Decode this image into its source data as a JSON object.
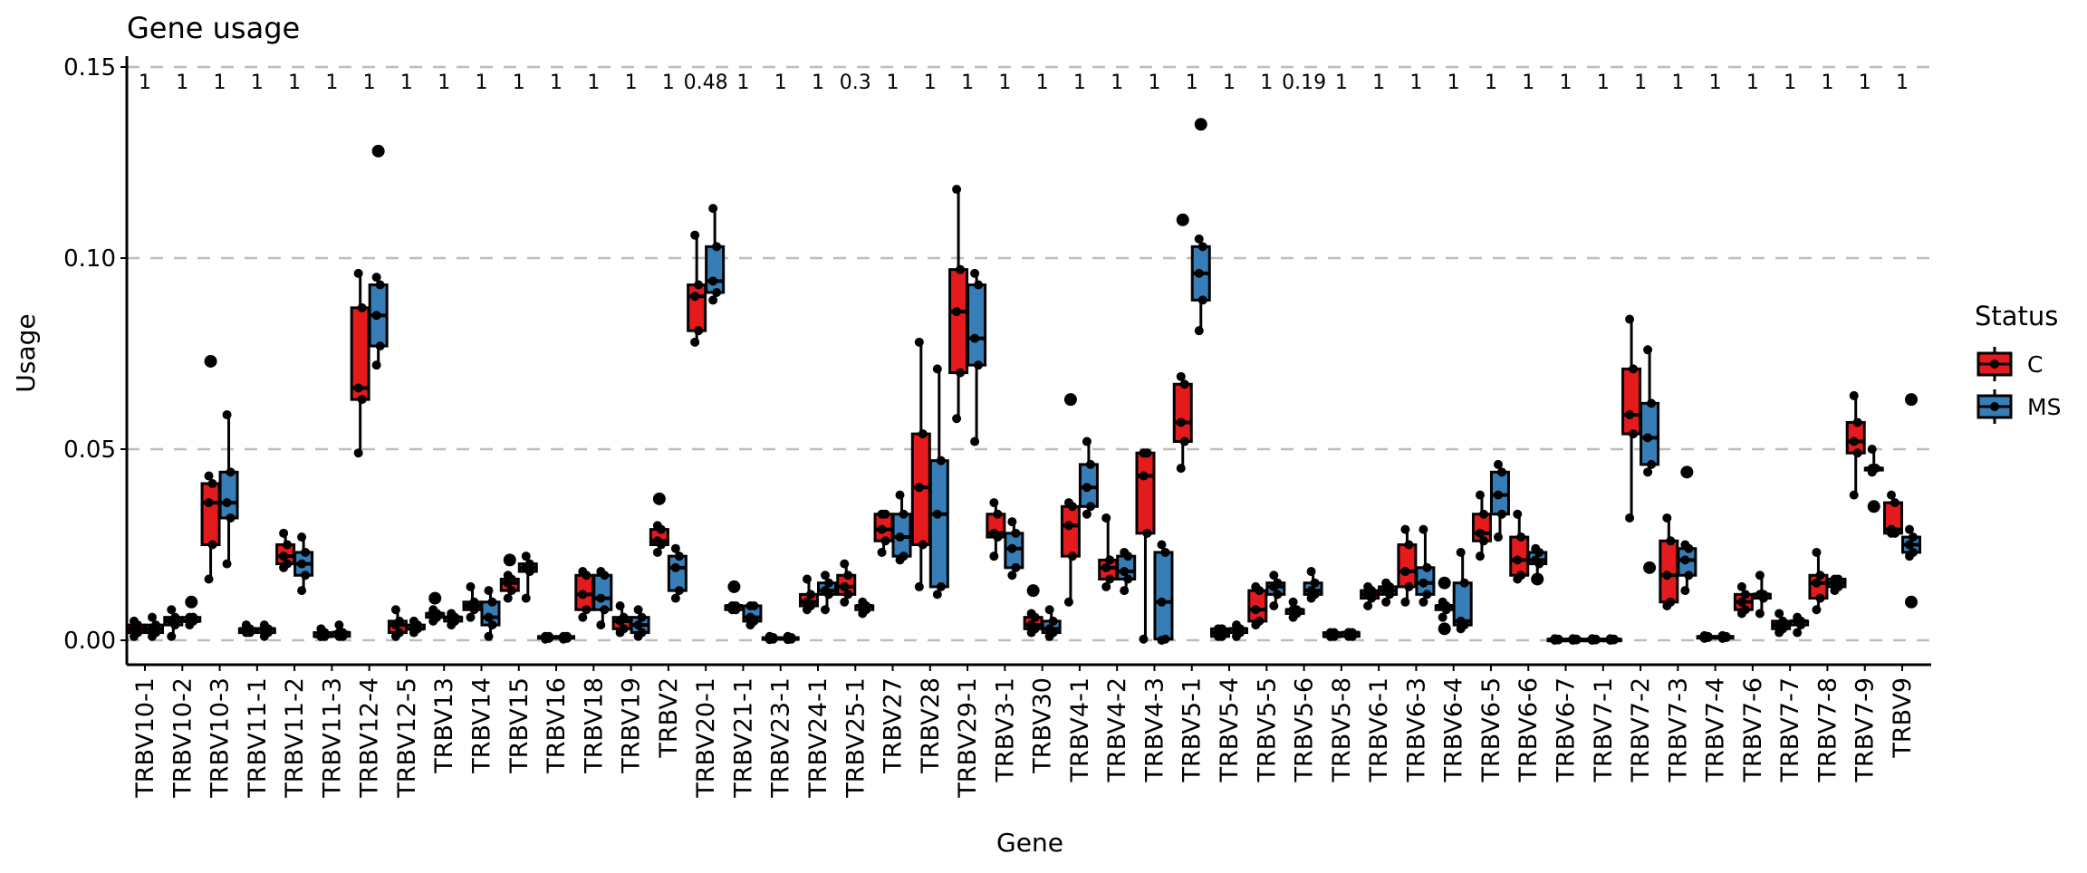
{
  "chart_data": {
    "type": "box",
    "title": "Gene usage",
    "xlabel": "Gene",
    "ylabel": "Usage",
    "ylim": [
      0,
      0.15
    ],
    "yticks": [
      "0.00",
      "0.05",
      "0.10",
      "0.15"
    ],
    "ytick_values": [
      0,
      0.05,
      0.1,
      0.15
    ],
    "grid": "horizontal dashed",
    "legend": {
      "title": "Status",
      "position": "right",
      "entries": [
        "C",
        "MS"
      ]
    },
    "colors": {
      "C": "#E41A1C",
      "MS": "#377EB8"
    },
    "categories": [
      "TRBV10-1",
      "TRBV10-2",
      "TRBV10-3",
      "TRBV11-1",
      "TRBV11-2",
      "TRBV11-3",
      "TRBV12-4",
      "TRBV12-5",
      "TRBV13",
      "TRBV14",
      "TRBV15",
      "TRBV16",
      "TRBV18",
      "TRBV19",
      "TRBV2",
      "TRBV20-1",
      "TRBV21-1",
      "TRBV23-1",
      "TRBV24-1",
      "TRBV25-1",
      "TRBV27",
      "TRBV28",
      "TRBV29-1",
      "TRBV3-1",
      "TRBV30",
      "TRBV4-1",
      "TRBV4-2",
      "TRBV4-3",
      "TRBV5-1",
      "TRBV5-4",
      "TRBV5-5",
      "TRBV5-6",
      "TRBV5-8",
      "TRBV6-1",
      "TRBV6-3",
      "TRBV6-4",
      "TRBV6-5",
      "TRBV6-6",
      "TRBV6-7",
      "TRBV7-1",
      "TRBV7-2",
      "TRBV7-3",
      "TRBV7-4",
      "TRBV7-6",
      "TRBV7-7",
      "TRBV7-8",
      "TRBV7-9",
      "TRBV9"
    ],
    "p_values": [
      "1",
      "1",
      "1",
      "1",
      "1",
      "1",
      "1",
      "1",
      "1",
      "1",
      "1",
      "1",
      "1",
      "1",
      "1",
      "0.48",
      "1",
      "1",
      "1",
      "0.3",
      "1",
      "1",
      "1",
      "1",
      "1",
      "1",
      "1",
      "1",
      "1",
      "1",
      "1",
      "0.19",
      "1",
      "1",
      "1",
      "1",
      "1",
      "1",
      "1",
      "1",
      "1",
      "1",
      "1",
      "1",
      "1",
      "1",
      "1",
      "1"
    ],
    "series": [
      {
        "name": "C",
        "stats_order": "min,q1,median,q3,max",
        "boxes": [
          [
            0.001,
            0.002,
            0.003,
            0.004,
            0.005
          ],
          [
            0.001,
            0.004,
            0.005,
            0.006,
            0.008
          ],
          [
            0.016,
            0.025,
            0.036,
            0.041,
            0.043
          ],
          [
            0.002,
            0.002,
            0.003,
            0.003,
            0.004
          ],
          [
            0.019,
            0.02,
            0.022,
            0.025,
            0.028
          ],
          [
            0.001,
            0.001,
            0.001,
            0.002,
            0.003
          ],
          [
            0.049,
            0.063,
            0.066,
            0.087,
            0.096
          ],
          [
            0.001,
            0.002,
            0.004,
            0.005,
            0.008
          ],
          [
            0.005,
            0.006,
            0.007,
            0.007,
            0.008
          ],
          [
            0.006,
            0.008,
            0.009,
            0.01,
            0.014
          ],
          [
            0.011,
            0.013,
            0.015,
            0.016,
            0.017
          ],
          [
            0.0003,
            0.0005,
            0.0008,
            0.001,
            0.001
          ],
          [
            0.006,
            0.008,
            0.012,
            0.017,
            0.018
          ],
          [
            0.002,
            0.003,
            0.005,
            0.006,
            0.009
          ],
          [
            0.023,
            0.025,
            0.026,
            0.029,
            0.03
          ],
          [
            0.078,
            0.081,
            0.09,
            0.093,
            0.106
          ],
          [
            0.008,
            0.008,
            0.009,
            0.009,
            0.009
          ],
          [
            0.0002,
            0.0003,
            0.0005,
            0.0007,
            0.001
          ],
          [
            0.008,
            0.009,
            0.01,
            0.012,
            0.016
          ],
          [
            0.01,
            0.012,
            0.014,
            0.017,
            0.02
          ],
          [
            0.023,
            0.026,
            0.029,
            0.033,
            0.033
          ],
          [
            0.014,
            0.025,
            0.04,
            0.054,
            0.078
          ],
          [
            0.058,
            0.07,
            0.086,
            0.097,
            0.118
          ],
          [
            0.022,
            0.027,
            0.028,
            0.033,
            0.036
          ],
          [
            0.002,
            0.003,
            0.004,
            0.006,
            0.007
          ],
          [
            0.01,
            0.022,
            0.03,
            0.035,
            0.036
          ],
          [
            0.014,
            0.016,
            0.019,
            0.021,
            0.032
          ],
          [
            0.0003,
            0.028,
            0.043,
            0.049,
            0.049
          ],
          [
            0.045,
            0.052,
            0.057,
            0.067,
            0.069
          ],
          [
            0.001,
            0.001,
            0.002,
            0.003,
            0.003
          ],
          [
            0.004,
            0.005,
            0.008,
            0.013,
            0.014
          ],
          [
            0.006,
            0.007,
            0.008,
            0.008,
            0.01
          ],
          [
            0.001,
            0.001,
            0.001,
            0.002,
            0.002
          ],
          [
            0.009,
            0.011,
            0.012,
            0.013,
            0.014
          ],
          [
            0.01,
            0.014,
            0.018,
            0.025,
            0.029
          ],
          [
            0.006,
            0.008,
            0.009,
            0.009,
            0.01
          ],
          [
            0.022,
            0.026,
            0.028,
            0.033,
            0.038
          ],
          [
            0.016,
            0.017,
            0.021,
            0.027,
            0.033
          ],
          [
            0.0,
            0.0001,
            0.0002,
            0.0003,
            0.0004
          ],
          [
            0.0,
            0.0001,
            0.0002,
            0.0003,
            0.0004
          ],
          [
            0.032,
            0.054,
            0.059,
            0.071,
            0.084
          ],
          [
            0.009,
            0.01,
            0.017,
            0.026,
            0.032
          ],
          [
            0.0005,
            0.0007,
            0.0009,
            0.001,
            0.0012
          ],
          [
            0.007,
            0.008,
            0.01,
            0.012,
            0.014
          ],
          [
            0.002,
            0.003,
            0.004,
            0.005,
            0.007
          ],
          [
            0.008,
            0.011,
            0.015,
            0.017,
            0.023
          ],
          [
            0.038,
            0.049,
            0.052,
            0.057,
            0.064
          ],
          [
            0.028,
            0.028,
            0.029,
            0.036,
            0.038
          ]
        ],
        "outliers": {
          "2": [
            0.073
          ],
          "8": [
            0.011
          ],
          "10": [
            0.021
          ],
          "14": [
            0.037
          ],
          "16": [
            0.014
          ],
          "24": [
            0.013
          ],
          "25": [
            0.063
          ],
          "28": [
            0.11
          ],
          "35": [
            0.015,
            0.003
          ]
        }
      },
      {
        "name": "MS",
        "stats_order": "min,q1,median,q3,max",
        "boxes": [
          [
            0.001,
            0.002,
            0.003,
            0.004,
            0.006
          ],
          [
            0.004,
            0.005,
            0.005,
            0.006,
            0.006
          ],
          [
            0.02,
            0.032,
            0.036,
            0.044,
            0.059
          ],
          [
            0.001,
            0.002,
            0.003,
            0.003,
            0.004
          ],
          [
            0.013,
            0.017,
            0.02,
            0.023,
            0.027
          ],
          [
            0.001,
            0.001,
            0.002,
            0.002,
            0.004
          ],
          [
            0.072,
            0.077,
            0.085,
            0.093,
            0.095
          ],
          [
            0.002,
            0.003,
            0.003,
            0.004,
            0.005
          ],
          [
            0.004,
            0.005,
            0.006,
            0.006,
            0.007
          ],
          [
            0.001,
            0.004,
            0.006,
            0.01,
            0.013
          ],
          [
            0.011,
            0.018,
            0.019,
            0.02,
            0.022
          ],
          [
            0.0003,
            0.0005,
            0.0007,
            0.001,
            0.001
          ],
          [
            0.004,
            0.008,
            0.011,
            0.017,
            0.018
          ],
          [
            0.001,
            0.002,
            0.004,
            0.006,
            0.008
          ],
          [
            0.011,
            0.013,
            0.019,
            0.022,
            0.024
          ],
          [
            0.089,
            0.091,
            0.094,
            0.103,
            0.113
          ],
          [
            0.004,
            0.005,
            0.006,
            0.009,
            0.009
          ],
          [
            0.0002,
            0.0003,
            0.0005,
            0.0007,
            0.001
          ],
          [
            0.008,
            0.012,
            0.013,
            0.015,
            0.017
          ],
          [
            0.007,
            0.008,
            0.009,
            0.009,
            0.01
          ],
          [
            0.021,
            0.022,
            0.027,
            0.033,
            0.038
          ],
          [
            0.012,
            0.014,
            0.033,
            0.047,
            0.071
          ],
          [
            0.052,
            0.072,
            0.079,
            0.093,
            0.096
          ],
          [
            0.017,
            0.019,
            0.024,
            0.028,
            0.031
          ],
          [
            0.001,
            0.002,
            0.003,
            0.005,
            0.008
          ],
          [
            0.033,
            0.035,
            0.04,
            0.046,
            0.052
          ],
          [
            0.013,
            0.016,
            0.018,
            0.022,
            0.023
          ],
          [
            0.0,
            0.0003,
            0.01,
            0.023,
            0.025
          ],
          [
            0.081,
            0.089,
            0.096,
            0.103,
            0.105
          ],
          [
            0.001,
            0.002,
            0.003,
            0.003,
            0.004
          ],
          [
            0.009,
            0.012,
            0.014,
            0.015,
            0.017
          ],
          [
            0.011,
            0.012,
            0.013,
            0.015,
            0.018
          ],
          [
            0.001,
            0.001,
            0.002,
            0.002,
            0.002
          ],
          [
            0.01,
            0.012,
            0.013,
            0.014,
            0.015
          ],
          [
            0.01,
            0.012,
            0.015,
            0.019,
            0.029
          ],
          [
            0.003,
            0.004,
            0.005,
            0.015,
            0.023
          ],
          [
            0.027,
            0.033,
            0.038,
            0.044,
            0.046
          ],
          [
            0.016,
            0.02,
            0.021,
            0.023,
            0.024
          ],
          [
            0.0,
            0.0001,
            0.0002,
            0.0003,
            0.0004
          ],
          [
            0.0,
            0.0001,
            0.0002,
            0.0003,
            0.0004
          ],
          [
            0.044,
            0.046,
            0.053,
            0.062,
            0.076
          ],
          [
            0.013,
            0.017,
            0.021,
            0.024,
            0.025
          ],
          [
            0.0005,
            0.0007,
            0.0009,
            0.001,
            0.0012
          ],
          [
            0.007,
            0.011,
            0.012,
            0.012,
            0.017
          ],
          [
            0.002,
            0.004,
            0.005,
            0.005,
            0.006
          ],
          [
            0.013,
            0.014,
            0.015,
            0.016,
            0.016
          ],
          [
            0.044,
            0.045,
            0.045,
            0.045,
            0.05
          ],
          [
            0.022,
            0.023,
            0.025,
            0.027,
            0.029
          ]
        ],
        "outliers": {
          "1": [
            0.01
          ],
          "6": [
            0.128
          ],
          "28": [
            0.135
          ],
          "37": [
            0.016
          ],
          "40": [
            0.019
          ],
          "41": [
            0.044
          ],
          "46": [
            0.035
          ],
          "47": [
            0.063,
            0.01
          ]
        }
      }
    ]
  }
}
